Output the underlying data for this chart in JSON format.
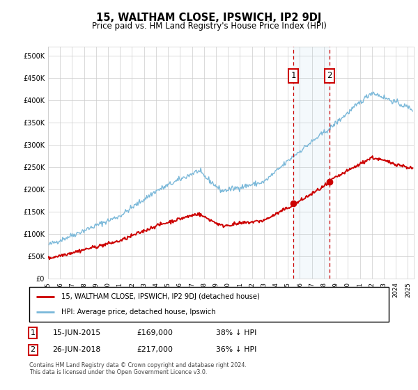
{
  "title": "15, WALTHAM CLOSE, IPSWICH, IP2 9DJ",
  "subtitle": "Price paid vs. HM Land Registry's House Price Index (HPI)",
  "legend_line1": "15, WALTHAM CLOSE, IPSWICH, IP2 9DJ (detached house)",
  "legend_line2": "HPI: Average price, detached house, Ipswich",
  "annotation1_date": "15-JUN-2015",
  "annotation1_price": "£169,000",
  "annotation1_hpi": "38% ↓ HPI",
  "annotation1_year": 2015.46,
  "annotation1_value": 169000,
  "annotation2_date": "26-JUN-2018",
  "annotation2_price": "£217,000",
  "annotation2_hpi": "36% ↓ HPI",
  "annotation2_year": 2018.49,
  "annotation2_value": 217000,
  "copyright_text": "Contains HM Land Registry data © Crown copyright and database right 2024.\nThis data is licensed under the Open Government Licence v3.0.",
  "hpi_color": "#7ab8d9",
  "price_color": "#cc0000",
  "background_color": "#ffffff",
  "grid_color": "#cccccc",
  "ylim": [
    0,
    520000
  ],
  "xlim_start": 1995.0,
  "xlim_end": 2025.5
}
